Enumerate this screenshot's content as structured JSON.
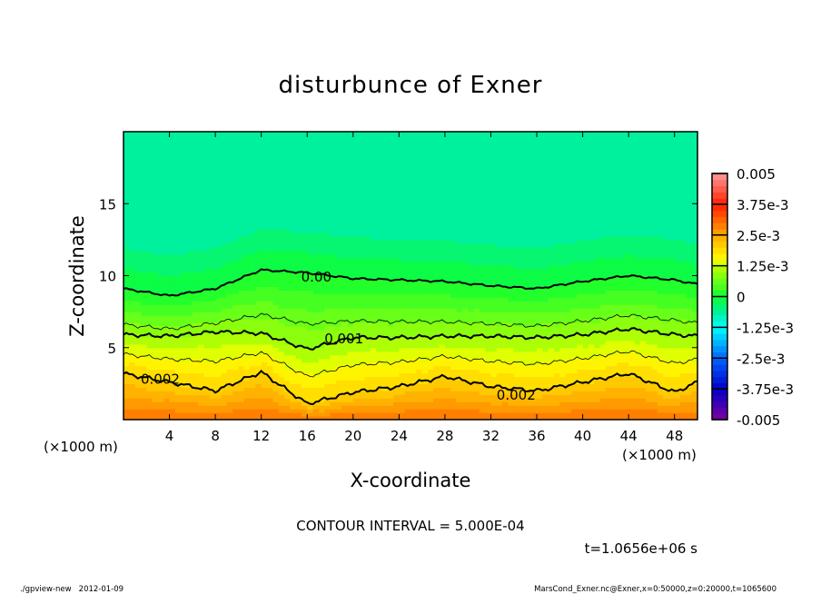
{
  "chart_data": {
    "type": "heatmap",
    "title": "disturbunce of Exner",
    "xlabel": "X-coordinate",
    "ylabel": "Z-coordinate",
    "x_unit_label": "(×1000 m)",
    "xlim": [
      0,
      50
    ],
    "ylim": [
      0,
      20
    ],
    "x_ticks": [
      4,
      8,
      12,
      16,
      20,
      24,
      28,
      32,
      36,
      40,
      44,
      48
    ],
    "y_ticks": [
      5,
      10,
      15
    ],
    "contour_interval_text": "CONTOUR INTERVAL = 5.000E-04",
    "time_text": "t=1.0656e+06 s",
    "sample_x": [
      0,
      4,
      8,
      12,
      16,
      20,
      24,
      28,
      32,
      36,
      40,
      44,
      48,
      50
    ],
    "contour_heights": {
      "0.002": [
        3.2,
        2.6,
        2.0,
        3.3,
        1.1,
        1.9,
        2.3,
        3.0,
        2.3,
        2.0,
        2.6,
        3.2,
        1.9,
        2.6
      ],
      "0.001": [
        5.9,
        5.8,
        6.1,
        6.0,
        4.9,
        5.7,
        5.7,
        5.8,
        5.8,
        5.7,
        5.9,
        6.3,
        5.9,
        5.8
      ],
      "0": [
        9.1,
        8.6,
        9.1,
        10.4,
        10.2,
        9.8,
        9.7,
        9.6,
        9.3,
        9.1,
        9.6,
        10.0,
        9.7,
        9.4
      ]
    },
    "surface_value": 0.003,
    "upper_min_value": -0.0007,
    "top_value": -0.0005,
    "contour_labels": [
      {
        "text": "0.002",
        "x": 3.2,
        "z": 2.8
      },
      {
        "text": "0.00",
        "x": 16.8,
        "z": 9.9
      },
      {
        "text": "0.001",
        "x": 19.2,
        "z": 5.6
      },
      {
        "text": "0.002",
        "x": 34.2,
        "z": 1.7
      }
    ],
    "colorbar": {
      "min": -0.005,
      "max": 0.005,
      "n_levels": 40,
      "tick_labels": [
        "0.005",
        "3.75e-3",
        "2.5e-3",
        "1.25e-3",
        "0",
        "-1.25e-3",
        "-2.5e-3",
        "-3.75e-3",
        "-0.005"
      ],
      "stops": [
        [
          -0.005,
          "#8000a0"
        ],
        [
          -0.00375,
          "#0000c8"
        ],
        [
          -0.0025,
          "#0064ff"
        ],
        [
          -0.00125,
          "#00ffff"
        ],
        [
          -0.0006,
          "#00f09a"
        ],
        [
          0,
          "#10ff30"
        ],
        [
          0.00125,
          "#c0ff00"
        ],
        [
          0.0015,
          "#ffff00"
        ],
        [
          0.0025,
          "#ffa800"
        ],
        [
          0.00375,
          "#ff2000"
        ],
        [
          0.005,
          "#ff9a9a"
        ]
      ]
    }
  },
  "footer": {
    "left": "./gpview-new   2012-01-09",
    "right": "MarsCond_Exner.nc@Exner,x=0:50000,z=0:20000,t=1065600"
  }
}
